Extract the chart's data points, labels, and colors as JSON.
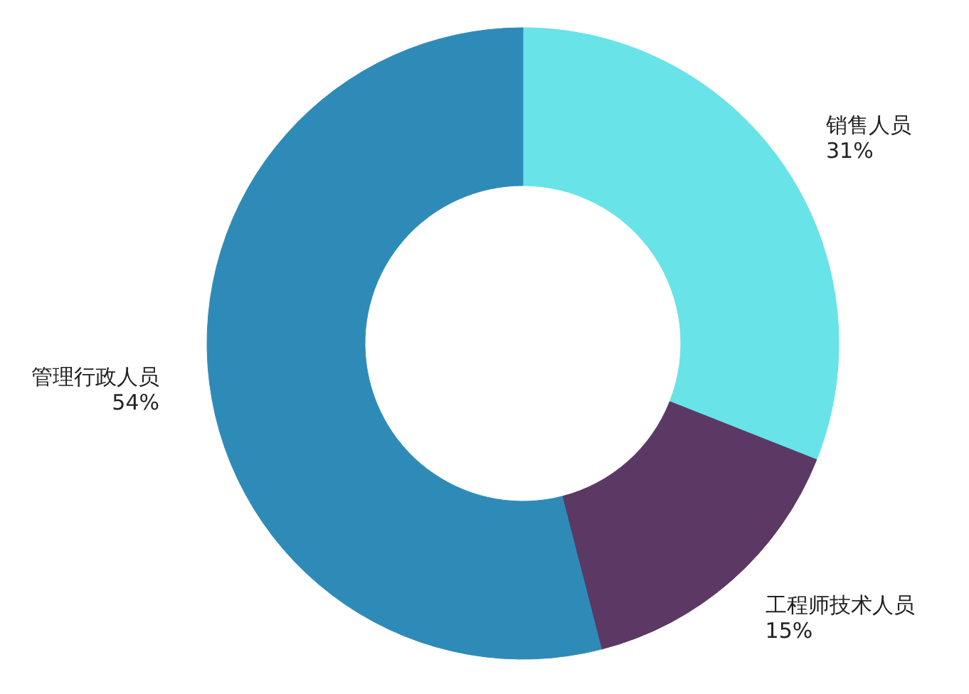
{
  "chart_data": {
    "type": "donut",
    "categories": [
      "销售人员",
      "工程师技术人员",
      "管理行政人员"
    ],
    "values": [
      31,
      15,
      54
    ],
    "colors": [
      "#68e3e8",
      "#5c3864",
      "#2e8bb8"
    ],
    "value_labels": [
      "31%",
      "15%",
      "54%"
    ]
  }
}
